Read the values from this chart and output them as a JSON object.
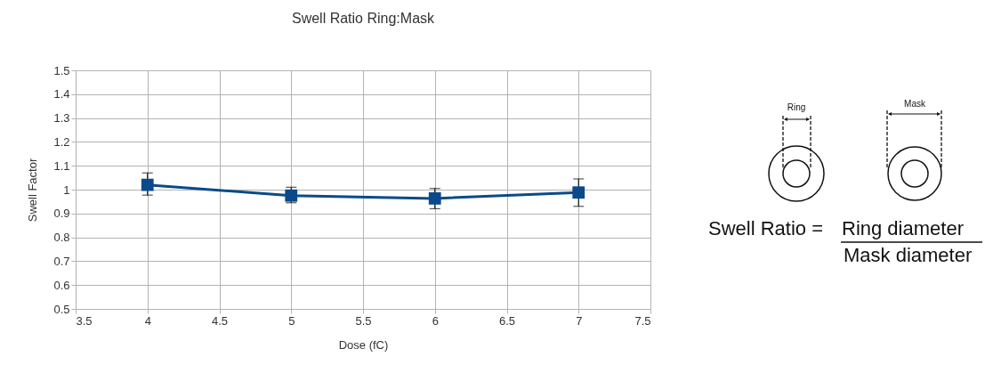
{
  "chart_data": {
    "type": "line",
    "title": "Swell Ratio Ring:Mask",
    "xlabel": "Dose (fC)",
    "ylabel": "Swell Factor",
    "x": [
      4,
      5,
      6,
      7
    ],
    "series": [
      {
        "color": "#0b4a8a",
        "values": [
          1.02,
          0.975,
          0.963,
          0.988
        ],
        "errors": [
          [
            0.977,
            1.07
          ],
          [
            0.945,
            1.01
          ],
          [
            0.92,
            1.005
          ],
          [
            0.93,
            1.045
          ]
        ]
      }
    ],
    "xlim": [
      3.5,
      7.5
    ],
    "xticks": [
      3.5,
      4,
      4.5,
      5,
      5.5,
      6,
      6.5,
      7,
      7.5
    ],
    "ylim": [
      0.5,
      1.5
    ],
    "yticks": [
      0.5,
      0.6,
      0.7,
      0.8,
      0.9,
      1,
      1.1,
      1.2,
      1.3,
      1.4,
      1.5
    ],
    "grid": true,
    "marker": "square",
    "line_style": "solid",
    "annotations": [
      "Ring",
      "Mask",
      "Swell Ratio =",
      "Ring diameter",
      "Mask diameter"
    ]
  }
}
